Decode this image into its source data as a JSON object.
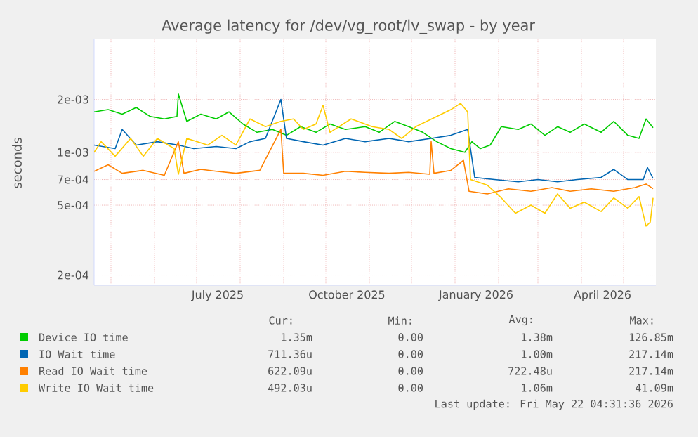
{
  "chart_data": {
    "type": "line",
    "title": "Average latency for /dev/vg_root/lv_swap - by year",
    "ylabel": "seconds",
    "log": true,
    "grid": true,
    "legend": "bottom",
    "xlim": [
      "2025-04-19",
      "2026-05-24"
    ],
    "xticks": [
      {
        "value": "2025-05-01",
        "label": null
      },
      {
        "value": "2025-06-01",
        "label": null
      },
      {
        "value": "2025-07-01",
        "label": null
      },
      {
        "value": "2025-07-16",
        "label": "July 2025"
      },
      {
        "value": "2025-08-01",
        "label": null
      },
      {
        "value": "2025-09-01",
        "label": null
      },
      {
        "value": "2025-10-01",
        "label": null
      },
      {
        "value": "2025-10-16",
        "label": "October 2025"
      },
      {
        "value": "2025-11-01",
        "label": null
      },
      {
        "value": "2025-12-01",
        "label": null
      },
      {
        "value": "2026-01-01",
        "label": null
      },
      {
        "value": "2026-01-16",
        "label": "January 2026"
      },
      {
        "value": "2026-02-01",
        "label": null
      },
      {
        "value": "2026-03-01",
        "label": null
      },
      {
        "value": "2026-04-01",
        "label": null
      },
      {
        "value": "2026-04-16",
        "label": "April 2026"
      },
      {
        "value": "2026-05-01",
        "label": null
      }
    ],
    "ylim": [
      0.000175,
      0.0044
    ],
    "yticks": [
      {
        "value": 0.0002,
        "label": "2e-04"
      },
      {
        "value": 0.0005,
        "label": "5e-04"
      },
      {
        "value": 0.0007,
        "label": "7e-04"
      },
      {
        "value": 0.001,
        "label": "1e-03"
      },
      {
        "value": 0.002,
        "label": "2e-03"
      }
    ],
    "series": [
      {
        "name": "Device IO time",
        "color": "#00cc00",
        "x": [
          "2025-04-19",
          "2025-04-29",
          "2025-05-09",
          "2025-05-19",
          "2025-05-29",
          "2025-06-08",
          "2025-06-17",
          "2025-06-18",
          "2025-06-24",
          "2025-07-04",
          "2025-07-15",
          "2025-07-24",
          "2025-08-03",
          "2025-08-13",
          "2025-08-24",
          "2025-09-03",
          "2025-09-13",
          "2025-09-24",
          "2025-10-04",
          "2025-10-15",
          "2025-10-29",
          "2025-11-08",
          "2025-11-19",
          "2025-11-29",
          "2025-12-09",
          "2025-12-19",
          "2025-12-29",
          "2026-01-08",
          "2026-01-13",
          "2026-01-19",
          "2026-01-26",
          "2026-02-03",
          "2026-02-15",
          "2026-02-24",
          "2026-03-06",
          "2026-03-15",
          "2026-03-24",
          "2026-04-03",
          "2026-04-15",
          "2026-04-24",
          "2026-05-04",
          "2026-05-12",
          "2026-05-17",
          "2026-05-22"
        ],
        "values": [
          0.0017,
          0.00175,
          0.00165,
          0.0018,
          0.0016,
          0.00155,
          0.0016,
          0.00215,
          0.0015,
          0.00165,
          0.00155,
          0.0017,
          0.00145,
          0.0013,
          0.00135,
          0.00125,
          0.0014,
          0.0013,
          0.00145,
          0.00135,
          0.0014,
          0.0013,
          0.0015,
          0.0014,
          0.0013,
          0.00115,
          0.00105,
          0.001,
          0.00115,
          0.00105,
          0.0011,
          0.0014,
          0.00135,
          0.00145,
          0.00125,
          0.0014,
          0.0013,
          0.00145,
          0.0013,
          0.0015,
          0.00125,
          0.0012,
          0.00155,
          0.00138
        ]
      },
      {
        "name": "IO Wait time",
        "color": "#0066b3",
        "x": [
          "2025-04-19",
          "2025-05-04",
          "2025-05-09",
          "2025-05-19",
          "2025-06-03",
          "2025-06-18",
          "2025-06-29",
          "2025-07-15",
          "2025-07-29",
          "2025-08-08",
          "2025-08-19",
          "2025-08-30",
          "2025-09-03",
          "2025-09-15",
          "2025-09-29",
          "2025-10-15",
          "2025-10-29",
          "2025-11-15",
          "2025-11-29",
          "2025-12-15",
          "2025-12-29",
          "2026-01-10",
          "2026-01-15",
          "2026-01-29",
          "2026-02-15",
          "2026-03-01",
          "2026-03-15",
          "2026-03-29",
          "2026-04-15",
          "2026-04-24",
          "2026-05-04",
          "2026-05-15",
          "2026-05-18",
          "2026-05-22"
        ],
        "values": [
          0.0011,
          0.00105,
          0.00135,
          0.0011,
          0.00115,
          0.0011,
          0.00105,
          0.00108,
          0.00105,
          0.00115,
          0.0012,
          0.002,
          0.0012,
          0.00115,
          0.0011,
          0.0012,
          0.00115,
          0.0012,
          0.00115,
          0.0012,
          0.00125,
          0.00135,
          0.00072,
          0.0007,
          0.00068,
          0.0007,
          0.00068,
          0.0007,
          0.00072,
          0.0008,
          0.0007,
          0.0007,
          0.00082,
          0.00071
        ]
      },
      {
        "name": "Read IO Wait time",
        "color": "#ff8000",
        "x": [
          "2025-04-19",
          "2025-04-29",
          "2025-05-09",
          "2025-05-24",
          "2025-06-08",
          "2025-06-18",
          "2025-06-22",
          "2025-07-04",
          "2025-07-15",
          "2025-07-29",
          "2025-08-15",
          "2025-08-30",
          "2025-09-01",
          "2025-09-15",
          "2025-09-29",
          "2025-10-15",
          "2025-10-29",
          "2025-11-15",
          "2025-11-29",
          "2025-12-14",
          "2025-12-15",
          "2025-12-17",
          "2025-12-29",
          "2026-01-07",
          "2026-01-11",
          "2026-01-24",
          "2026-02-08",
          "2026-02-24",
          "2026-03-11",
          "2026-03-24",
          "2026-04-08",
          "2026-04-24",
          "2026-05-09",
          "2026-05-17",
          "2026-05-22"
        ],
        "values": [
          0.00078,
          0.00085,
          0.00076,
          0.00079,
          0.00074,
          0.00115,
          0.00076,
          0.0008,
          0.00078,
          0.00076,
          0.00079,
          0.00135,
          0.00076,
          0.00076,
          0.00074,
          0.00078,
          0.00077,
          0.00076,
          0.00077,
          0.00075,
          0.00115,
          0.00076,
          0.00079,
          0.0009,
          0.0006,
          0.00058,
          0.00062,
          0.0006,
          0.00063,
          0.0006,
          0.00062,
          0.0006,
          0.00063,
          0.00066,
          0.00062
        ]
      },
      {
        "name": "Write IO Wait time",
        "color": "#ffcc00",
        "x": [
          "2025-04-19",
          "2025-04-24",
          "2025-05-04",
          "2025-05-15",
          "2025-05-24",
          "2025-06-03",
          "2025-06-15",
          "2025-06-18",
          "2025-06-24",
          "2025-07-09",
          "2025-07-19",
          "2025-07-29",
          "2025-08-08",
          "2025-08-19",
          "2025-08-30",
          "2025-09-08",
          "2025-09-15",
          "2025-09-24",
          "2025-09-29",
          "2025-10-04",
          "2025-10-19",
          "2025-11-03",
          "2025-11-15",
          "2025-11-24",
          "2025-12-04",
          "2025-12-19",
          "2025-12-29",
          "2026-01-05",
          "2026-01-10",
          "2026-01-12",
          "2026-01-24",
          "2026-02-03",
          "2026-02-13",
          "2026-02-24",
          "2026-03-06",
          "2026-03-15",
          "2026-03-24",
          "2026-04-03",
          "2026-04-15",
          "2026-04-24",
          "2026-05-04",
          "2026-05-12",
          "2026-05-17",
          "2026-05-20",
          "2026-05-22"
        ],
        "values": [
          0.001,
          0.00115,
          0.00095,
          0.0012,
          0.00095,
          0.0012,
          0.00105,
          0.00075,
          0.0012,
          0.0011,
          0.00125,
          0.0011,
          0.00155,
          0.0014,
          0.0015,
          0.00155,
          0.00135,
          0.00145,
          0.00185,
          0.0013,
          0.00155,
          0.0014,
          0.00135,
          0.0012,
          0.0014,
          0.0016,
          0.00175,
          0.0019,
          0.0017,
          0.0007,
          0.00065,
          0.00055,
          0.00045,
          0.0005,
          0.00045,
          0.00058,
          0.00048,
          0.00052,
          0.00046,
          0.00055,
          0.00048,
          0.00056,
          0.00038,
          0.0004,
          0.00055
        ]
      }
    ],
    "annotations": [
      "Cur:",
      "Min:",
      "Avg:",
      "Max:",
      "1.35m",
      "0.00",
      "1.38m",
      "126.85m",
      "711.36u",
      "0.00",
      "1.00m",
      "217.14m",
      "622.09u",
      "0.00",
      "722.48u",
      "217.14m",
      "492.03u",
      "0.00",
      "1.06m",
      "41.09m",
      "Last update: Fri May 22 04:31:36 2026"
    ]
  }
}
